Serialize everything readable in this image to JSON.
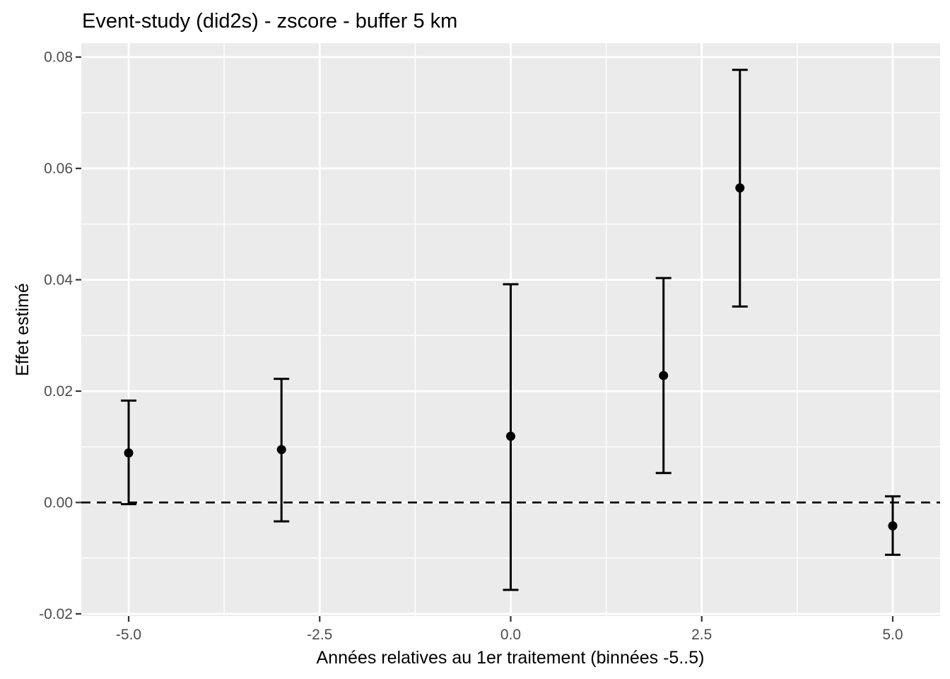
{
  "chart_data": {
    "type": "pointrange",
    "title": "Event-study (did2s) - zscore - buffer 5 km",
    "xlabel": "Années relatives au 1er traitement (binnées -5..5)",
    "ylabel": "Effet estimé",
    "x_ticks": [
      -5.0,
      -2.5,
      0.0,
      2.5,
      5.0
    ],
    "x_tick_labels": [
      "-5.0",
      "-2.5",
      "0.0",
      "2.5",
      "5.0"
    ],
    "y_ticks": [
      -0.02,
      0.0,
      0.02,
      0.04,
      0.06,
      0.08
    ],
    "y_tick_labels": [
      "-0.02",
      "0.00",
      "0.02",
      "0.04",
      "0.06",
      "0.08"
    ],
    "xlim": [
      -5.62,
      5.62
    ],
    "ylim": [
      -0.0204,
      0.0825
    ],
    "grid": true,
    "legend": "none",
    "reference_line_y": 0,
    "series": [
      {
        "name": "estimate-with-95ci",
        "points": [
          {
            "x": -5,
            "estimate": 0.0089,
            "ci_low": -0.0003,
            "ci_high": 0.0183
          },
          {
            "x": -3,
            "estimate": 0.0095,
            "ci_low": -0.0034,
            "ci_high": 0.0222
          },
          {
            "x": 0,
            "estimate": 0.0119,
            "ci_low": -0.0157,
            "ci_high": 0.0392
          },
          {
            "x": 2,
            "estimate": 0.0228,
            "ci_low": 0.0053,
            "ci_high": 0.0403
          },
          {
            "x": 3,
            "estimate": 0.0565,
            "ci_low": 0.0352,
            "ci_high": 0.0777
          },
          {
            "x": 5,
            "estimate": -0.0042,
            "ci_low": -0.0094,
            "ci_high": 0.0011
          }
        ]
      }
    ],
    "colors": {
      "panel_background": "#EBEBEB",
      "gridline": "#FFFFFF",
      "point": "#000000",
      "reference_line": "#000000",
      "axis_tick": "#333333",
      "axis_text": "#4D4D4D",
      "title_text": "#000000"
    }
  }
}
